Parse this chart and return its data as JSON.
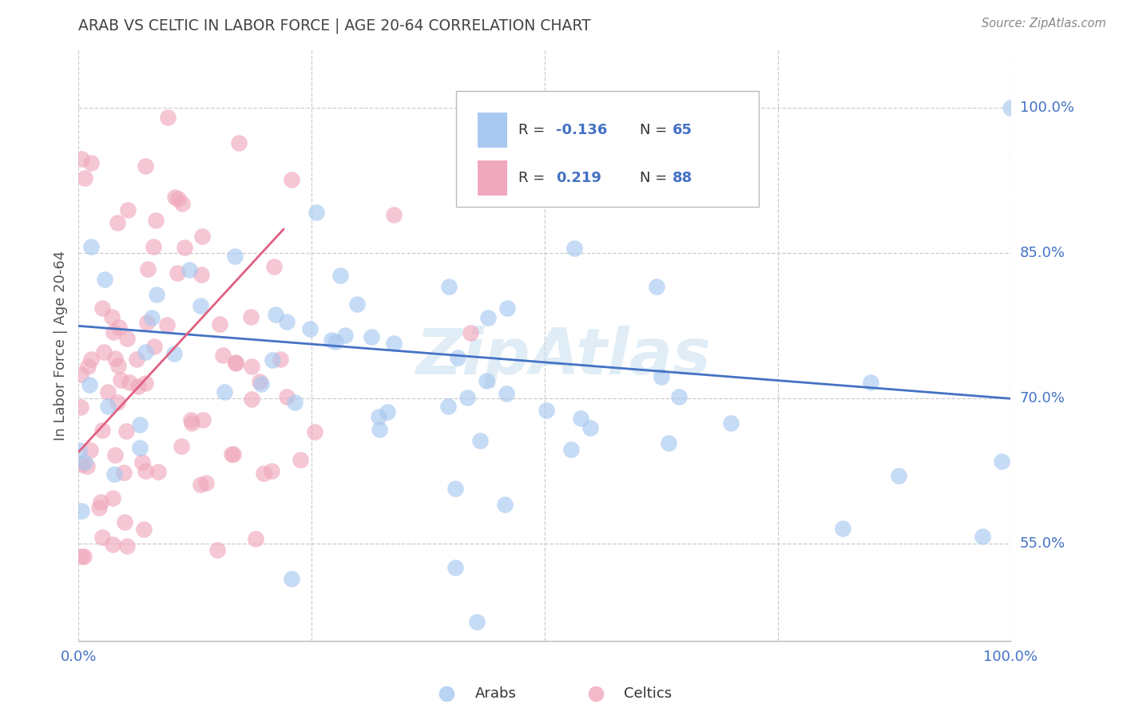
{
  "title": "ARAB VS CELTIC IN LABOR FORCE | AGE 20-64 CORRELATION CHART",
  "source": "Source: ZipAtlas.com",
  "ylabel": "In Labor Force | Age 20-64",
  "xlim": [
    0,
    1.0
  ],
  "ylim": [
    0.45,
    1.06
  ],
  "arab_color": "#a8c8f0",
  "celtic_color": "#f0a8bc",
  "arab_line_color": "#4472c4",
  "celtic_line_color": "#e06080",
  "grid_color": "#cccccc",
  "background_color": "#ffffff",
  "title_color": "#444444",
  "axis_label_color": "#555555",
  "tick_color": "#4472c4",
  "arab_seed": 12,
  "celtic_seed": 7,
  "arab_n": 65,
  "celtic_n": 88,
  "arab_line_x0": 0.0,
  "arab_line_y0": 0.775,
  "arab_line_x1": 1.0,
  "arab_line_y1": 0.7,
  "celtic_line_x0": 0.0,
  "celtic_line_y0": 0.645,
  "celtic_line_x1": 0.22,
  "celtic_line_y1": 0.875,
  "watermark_text": "ZipAtlas",
  "watermark_color": "#c8dff0",
  "watermark_alpha": 0.55,
  "legend_R_arab": "-0.136",
  "legend_N_arab": "65",
  "legend_R_celtic": "0.219",
  "legend_N_celtic": "88"
}
